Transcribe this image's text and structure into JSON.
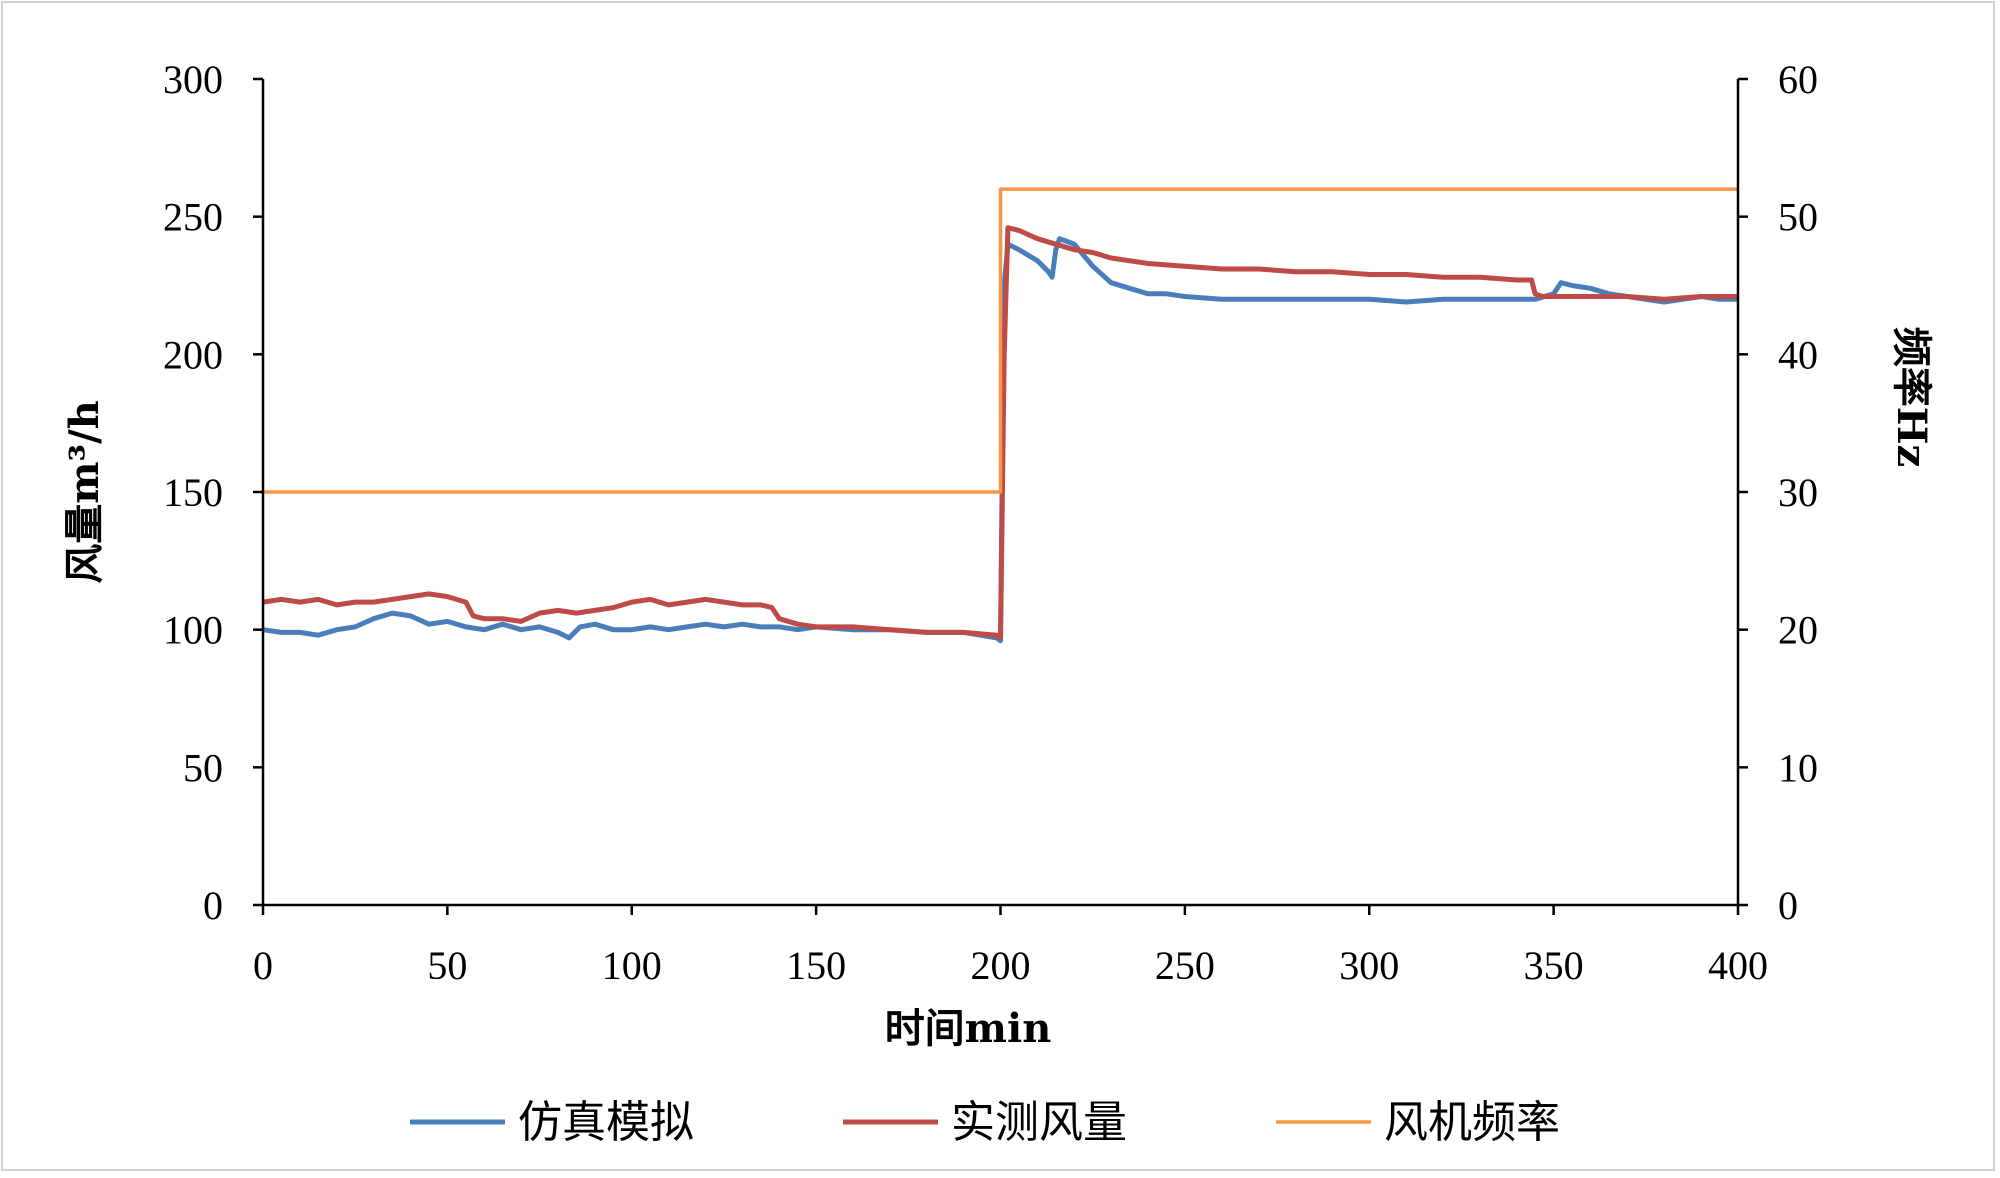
{
  "chart_data": {
    "type": "line",
    "xlabel": "时间min",
    "ylabel_left": "风量m³/h",
    "ylabel_right": "频率Hz",
    "xlim": [
      0,
      400
    ],
    "ylim_left": [
      0,
      300
    ],
    "ylim_right": [
      0,
      60
    ],
    "x_ticks": [
      "0",
      "50",
      "100",
      "150",
      "200",
      "250",
      "300",
      "350",
      "400"
    ],
    "y_left_ticks": [
      "0",
      "50",
      "100",
      "150",
      "200",
      "250",
      "300"
    ],
    "y_right_ticks": [
      "0",
      "10",
      "20",
      "30",
      "40",
      "50",
      "60"
    ],
    "grid": false,
    "legend_position": "bottom",
    "series": [
      {
        "name": "仿真模拟",
        "axis": "left",
        "color": "#4A7EBB",
        "points": [
          [
            0,
            100
          ],
          [
            5,
            99
          ],
          [
            10,
            99
          ],
          [
            15,
            98
          ],
          [
            20,
            100
          ],
          [
            25,
            101
          ],
          [
            30,
            104
          ],
          [
            35,
            106
          ],
          [
            40,
            105
          ],
          [
            45,
            102
          ],
          [
            50,
            103
          ],
          [
            55,
            101
          ],
          [
            60,
            100
          ],
          [
            65,
            102
          ],
          [
            70,
            100
          ],
          [
            75,
            101
          ],
          [
            80,
            99
          ],
          [
            83,
            97
          ],
          [
            86,
            101
          ],
          [
            90,
            102
          ],
          [
            95,
            100
          ],
          [
            100,
            100
          ],
          [
            105,
            101
          ],
          [
            110,
            100
          ],
          [
            115,
            101
          ],
          [
            120,
            102
          ],
          [
            125,
            101
          ],
          [
            130,
            102
          ],
          [
            135,
            101
          ],
          [
            140,
            101
          ],
          [
            145,
            100
          ],
          [
            150,
            101
          ],
          [
            160,
            100
          ],
          [
            170,
            100
          ],
          [
            180,
            99
          ],
          [
            190,
            99
          ],
          [
            199,
            97
          ],
          [
            200,
            96
          ],
          [
            201,
            225
          ],
          [
            202,
            240
          ],
          [
            205,
            238
          ],
          [
            210,
            234
          ],
          [
            213,
            230
          ],
          [
            214,
            228
          ],
          [
            215,
            238
          ],
          [
            216,
            242
          ],
          [
            218,
            241
          ],
          [
            220,
            240
          ],
          [
            225,
            232
          ],
          [
            230,
            226
          ],
          [
            235,
            224
          ],
          [
            240,
            222
          ],
          [
            245,
            222
          ],
          [
            250,
            221
          ],
          [
            260,
            220
          ],
          [
            270,
            220
          ],
          [
            280,
            220
          ],
          [
            290,
            220
          ],
          [
            300,
            220
          ],
          [
            310,
            219
          ],
          [
            320,
            220
          ],
          [
            330,
            220
          ],
          [
            340,
            220
          ],
          [
            345,
            220
          ],
          [
            350,
            222
          ],
          [
            352,
            226
          ],
          [
            355,
            225
          ],
          [
            360,
            224
          ],
          [
            365,
            222
          ],
          [
            370,
            221
          ],
          [
            375,
            220
          ],
          [
            380,
            219
          ],
          [
            385,
            220
          ],
          [
            390,
            221
          ],
          [
            395,
            220
          ],
          [
            400,
            220
          ]
        ]
      },
      {
        "name": "实测风量",
        "axis": "left",
        "color": "#BE4B48",
        "points": [
          [
            0,
            110
          ],
          [
            5,
            111
          ],
          [
            10,
            110
          ],
          [
            15,
            111
          ],
          [
            20,
            109
          ],
          [
            25,
            110
          ],
          [
            30,
            110
          ],
          [
            35,
            111
          ],
          [
            40,
            112
          ],
          [
            45,
            113
          ],
          [
            50,
            112
          ],
          [
            55,
            110
          ],
          [
            57,
            105
          ],
          [
            60,
            104
          ],
          [
            65,
            104
          ],
          [
            70,
            103
          ],
          [
            75,
            106
          ],
          [
            80,
            107
          ],
          [
            85,
            106
          ],
          [
            90,
            107
          ],
          [
            95,
            108
          ],
          [
            100,
            110
          ],
          [
            105,
            111
          ],
          [
            110,
            109
          ],
          [
            115,
            110
          ],
          [
            120,
            111
          ],
          [
            125,
            110
          ],
          [
            130,
            109
          ],
          [
            135,
            109
          ],
          [
            138,
            108
          ],
          [
            140,
            104
          ],
          [
            145,
            102
          ],
          [
            150,
            101
          ],
          [
            160,
            101
          ],
          [
            170,
            100
          ],
          [
            180,
            99
          ],
          [
            190,
            99
          ],
          [
            199,
            98
          ],
          [
            200,
            97
          ],
          [
            201,
            200
          ],
          [
            202,
            246
          ],
          [
            205,
            245
          ],
          [
            210,
            242
          ],
          [
            215,
            240
          ],
          [
            220,
            238
          ],
          [
            225,
            237
          ],
          [
            230,
            235
          ],
          [
            240,
            233
          ],
          [
            250,
            232
          ],
          [
            260,
            231
          ],
          [
            270,
            231
          ],
          [
            280,
            230
          ],
          [
            290,
            230
          ],
          [
            300,
            229
          ],
          [
            310,
            229
          ],
          [
            320,
            228
          ],
          [
            330,
            228
          ],
          [
            340,
            227
          ],
          [
            344,
            227
          ],
          [
            345,
            222
          ],
          [
            347,
            221
          ],
          [
            350,
            221
          ],
          [
            360,
            221
          ],
          [
            370,
            221
          ],
          [
            380,
            220
          ],
          [
            390,
            221
          ],
          [
            400,
            221
          ]
        ]
      },
      {
        "name": "风机频率",
        "axis": "right",
        "color": "#F79646",
        "points": [
          [
            0,
            30
          ],
          [
            200,
            30
          ],
          [
            200,
            52
          ],
          [
            400,
            52
          ]
        ]
      }
    ]
  }
}
